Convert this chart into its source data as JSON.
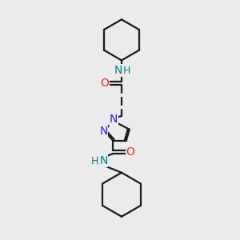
{
  "background_color": "#ebebeb",
  "bond_color": "#1a1a1a",
  "N_color": "#2020ff",
  "O_color": "#ff2020",
  "NH_color": "#008080",
  "line_width": 1.6,
  "font_size_atom": 9,
  "figure_size": [
    3.0,
    3.0
  ],
  "dpi": 100,
  "xlim": [
    0,
    300
  ],
  "ylim": [
    0,
    300
  ]
}
